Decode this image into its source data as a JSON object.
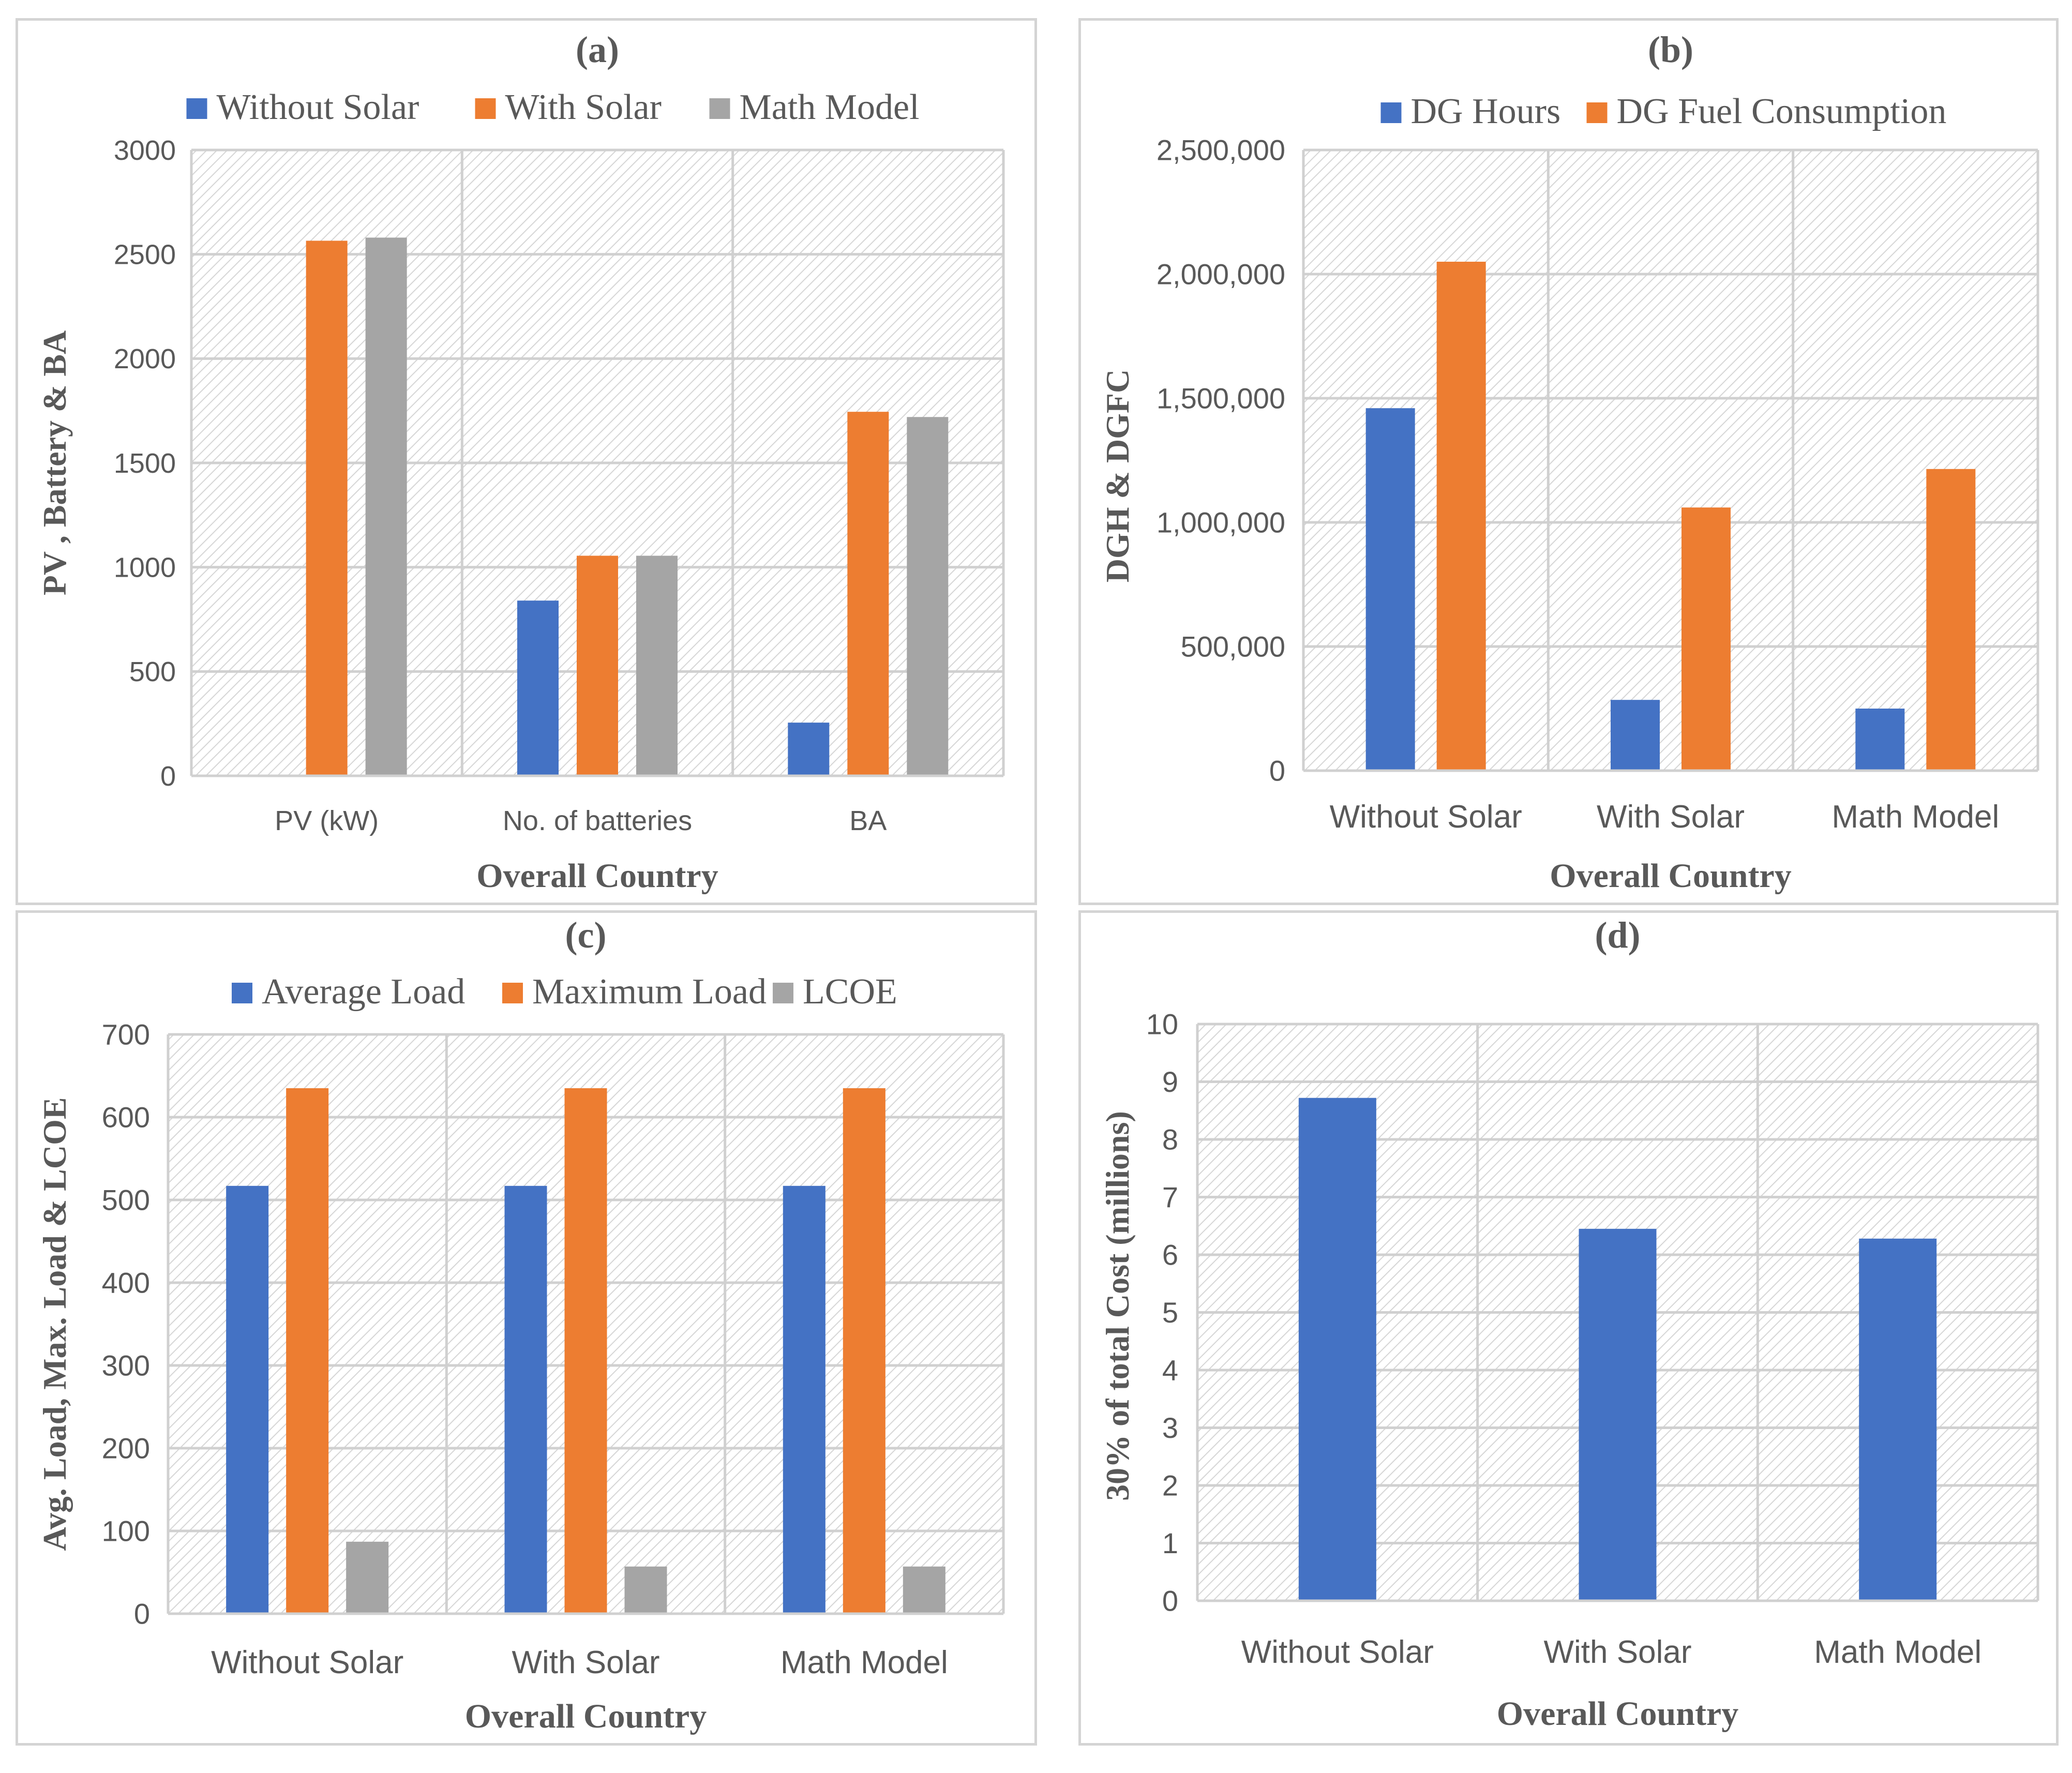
{
  "chart_data": [
    {
      "id": "a",
      "type": "bar",
      "title": "(a)",
      "xlabel": "Overall Country",
      "ylabel": "PV , Battery & BA",
      "categories": [
        "PV (kW)",
        "No. of batteries",
        "BA"
      ],
      "series": [
        {
          "name": "Without Solar",
          "color": "#4472C4",
          "values": [
            0,
            840,
            255
          ]
        },
        {
          "name": "With Solar",
          "color": "#ED7D31",
          "values": [
            2565,
            1055,
            1745
          ]
        },
        {
          "name": "Math Model",
          "color": "#A5A5A5",
          "values": [
            2580,
            1055,
            1720
          ]
        }
      ],
      "ylim": [
        0,
        3000
      ],
      "yticks": [
        0,
        500,
        1000,
        1500,
        2000,
        2500,
        3000
      ],
      "ytick_labels": [
        "0",
        "500",
        "1000",
        "1500",
        "2000",
        "2500",
        "3000"
      ],
      "legend": "top",
      "grid": true
    },
    {
      "id": "b",
      "type": "bar",
      "title": "(b)",
      "xlabel": "Overall Country",
      "ylabel": "DGH & DGFC",
      "categories": [
        "Without Solar",
        "With Solar",
        "Math Model"
      ],
      "series": [
        {
          "name": "DG Hours",
          "color": "#4472C4",
          "values": [
            1460000,
            285000,
            250000
          ]
        },
        {
          "name": "DG Fuel Consumption",
          "color": "#ED7D31",
          "values": [
            2050000,
            1060000,
            1215000
          ]
        }
      ],
      "ylim": [
        0,
        2500000
      ],
      "yticks": [
        0,
        500000,
        1000000,
        1500000,
        2000000,
        2500000
      ],
      "ytick_labels": [
        "0",
        "500,000",
        "1,000,000",
        "1,500,000",
        "2,000,000",
        "2,500,000"
      ],
      "legend": "top",
      "grid": true
    },
    {
      "id": "c",
      "type": "bar",
      "title": "(c)",
      "xlabel": "Overall Country",
      "ylabel": "Avg. Load, Max. Load & LCOE",
      "categories": [
        "Without Solar",
        "With Solar",
        "Math Model"
      ],
      "series": [
        {
          "name": "Average Load",
          "color": "#4472C4",
          "values": [
            517,
            517,
            517
          ]
        },
        {
          "name": "Maximum Load",
          "color": "#ED7D31",
          "values": [
            635,
            635,
            635
          ]
        },
        {
          "name": "LCOE",
          "color": "#A5A5A5",
          "values": [
            87,
            57,
            57
          ]
        }
      ],
      "ylim": [
        0,
        700
      ],
      "yticks": [
        0,
        100,
        200,
        300,
        400,
        500,
        600,
        700
      ],
      "ytick_labels": [
        "0",
        "100",
        "200",
        "300",
        "400",
        "500",
        "600",
        "700"
      ],
      "legend": "top",
      "grid": true
    },
    {
      "id": "d",
      "type": "bar",
      "title": "(d)",
      "xlabel": "Overall Country",
      "ylabel": "30% of total Cost (millions)",
      "categories": [
        "Without Solar",
        "With Solar",
        "Math Model"
      ],
      "series": [
        {
          "name": "30% of total Cost",
          "color": "#4472C4",
          "values": [
            8.72,
            6.45,
            6.28
          ]
        }
      ],
      "ylim": [
        0,
        10
      ],
      "yticks": [
        0,
        1,
        2,
        3,
        4,
        5,
        6,
        7,
        8,
        9,
        10
      ],
      "ytick_labels": [
        "0",
        "1",
        "2",
        "3",
        "4",
        "5",
        "6",
        "7",
        "8",
        "9",
        "10"
      ],
      "legend": "none",
      "grid": true
    }
  ]
}
